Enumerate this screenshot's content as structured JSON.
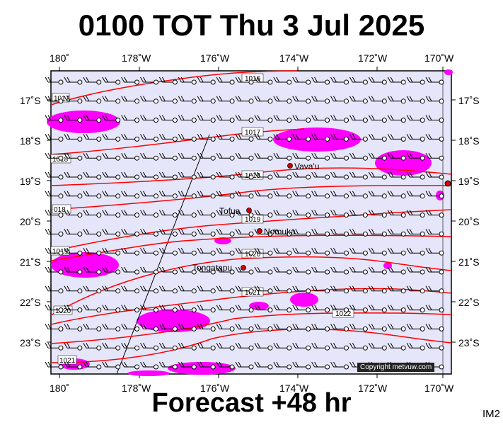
{
  "header": {
    "title": "0100 TOT Thu 3 Jul 2025"
  },
  "footer": {
    "subtitle": "Forecast +48 hr",
    "code": "IM2",
    "copyright": "Copyright metvuw.com"
  },
  "map": {
    "lon_labels": [
      "180˚",
      "178˚W",
      "176˚W",
      "174˚W",
      "172˚W",
      "170˚W"
    ],
    "lat_labels": [
      "17˚S",
      "18˚S",
      "19˚S",
      "20˚S",
      "21˚S",
      "22˚S",
      "23˚S"
    ],
    "isobar_labels": [
      "1016",
      "1017",
      "1017",
      "1018",
      "018",
      "1019",
      "1019",
      "1020",
      "1021",
      "1020",
      "1022",
      "1021",
      "1018"
    ],
    "places": [
      "Vava'u",
      "Tofua",
      "Nomuka",
      "Tongatapu"
    ],
    "colors": {
      "ocean": "#e6e6fa",
      "isobar": "#ff0000",
      "rain": "#ff00ff",
      "barb": "#000000"
    }
  }
}
